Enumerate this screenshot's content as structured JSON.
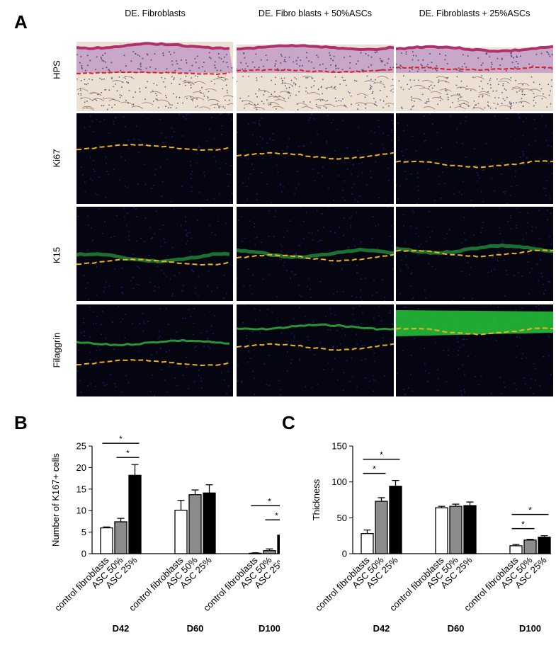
{
  "panel_a": {
    "letter": "A",
    "columns": [
      "DE. Fibroblasts",
      "DE. Fibro blasts + 50%ASCs",
      "DE. Fibroblasts + 25%ASCs"
    ],
    "rows": [
      "HPS",
      "Ki67",
      "K15",
      "Filaggrin"
    ]
  },
  "panel_b": {
    "letter": "B"
  },
  "panel_c": {
    "letter": "C"
  },
  "chart_data": [
    {
      "type": "bar",
      "ylabel": "Number of K167+ cells",
      "ylim": [
        0,
        25
      ],
      "yticks": [
        0,
        5,
        10,
        15,
        20,
        25
      ],
      "groups": [
        "D42",
        "D60",
        "D100"
      ],
      "categories": [
        "control fibroblasts",
        "ASC 50%",
        "ASC 25%"
      ],
      "series_colors": [
        "#ffffff",
        "#8c8c8c",
        "#000000"
      ],
      "series": [
        {
          "values": [
            6.0,
            10.1,
            0.1
          ],
          "errors": [
            0.2,
            2.3,
            0.1
          ]
        },
        {
          "values": [
            7.4,
            13.7,
            0.7
          ],
          "errors": [
            0.8,
            1.1,
            0.4
          ]
        },
        {
          "values": [
            18.2,
            14.1,
            4.3
          ],
          "errors": [
            2.5,
            1.9,
            1.9
          ]
        }
      ],
      "significance": [
        {
          "group": 0,
          "from": 0,
          "to": 2,
          "label": "*"
        },
        {
          "group": 0,
          "from": 1,
          "to": 2,
          "label": "*"
        },
        {
          "group": 2,
          "from": 0,
          "to": 2,
          "label": "*"
        },
        {
          "group": 2,
          "from": 1,
          "to": 2,
          "label": "*"
        }
      ]
    },
    {
      "type": "bar",
      "ylabel": "Thickness",
      "ylim": [
        0,
        150
      ],
      "yticks": [
        0,
        50,
        100,
        150
      ],
      "groups": [
        "D42",
        "D60",
        "D100"
      ],
      "categories": [
        "control fibroblasts",
        "ASC 50%",
        "ASC 25%"
      ],
      "series_colors": [
        "#ffffff",
        "#8c8c8c",
        "#000000"
      ],
      "series": [
        {
          "values": [
            28,
            64,
            11
          ],
          "errors": [
            5,
            2,
            2
          ]
        },
        {
          "values": [
            73,
            66,
            19
          ],
          "errors": [
            5,
            3,
            1
          ]
        },
        {
          "values": [
            94,
            67,
            23
          ],
          "errors": [
            8,
            5,
            2
          ]
        }
      ],
      "significance": [
        {
          "group": 0,
          "from": 0,
          "to": 1,
          "label": "*"
        },
        {
          "group": 0,
          "from": 0,
          "to": 2,
          "label": "*"
        },
        {
          "group": 2,
          "from": 0,
          "to": 1,
          "label": "*"
        },
        {
          "group": 2,
          "from": 0,
          "to": 2,
          "label": "*"
        }
      ]
    }
  ]
}
